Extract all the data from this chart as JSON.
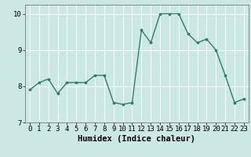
{
  "x": [
    0,
    1,
    2,
    3,
    4,
    5,
    6,
    7,
    8,
    9,
    10,
    11,
    12,
    13,
    14,
    15,
    16,
    17,
    18,
    19,
    20,
    21,
    22,
    23
  ],
  "y": [
    7.9,
    8.1,
    8.2,
    7.8,
    8.1,
    8.1,
    8.1,
    8.3,
    8.3,
    7.55,
    7.5,
    7.55,
    9.55,
    9.2,
    10.0,
    10.0,
    10.0,
    9.45,
    9.2,
    9.3,
    9.0,
    8.3,
    7.55,
    7.65
  ],
  "line_color": "#2e7d6e",
  "marker": "o",
  "markersize": 2.2,
  "linewidth": 1.0,
  "xlabel": "Humidex (Indice chaleur)",
  "xlabel_fontsize": 7.5,
  "xlim": [
    -0.5,
    23.5
  ],
  "ylim": [
    7.0,
    10.25
  ],
  "yticks": [
    7,
    8,
    9,
    10
  ],
  "xticks": [
    0,
    1,
    2,
    3,
    4,
    5,
    6,
    7,
    8,
    9,
    10,
    11,
    12,
    13,
    14,
    15,
    16,
    17,
    18,
    19,
    20,
    21,
    22,
    23
  ],
  "bg_color": "#cce8e4",
  "grid_color": "#ffffff",
  "tick_fontsize": 6.5,
  "spine_color": "#666666"
}
